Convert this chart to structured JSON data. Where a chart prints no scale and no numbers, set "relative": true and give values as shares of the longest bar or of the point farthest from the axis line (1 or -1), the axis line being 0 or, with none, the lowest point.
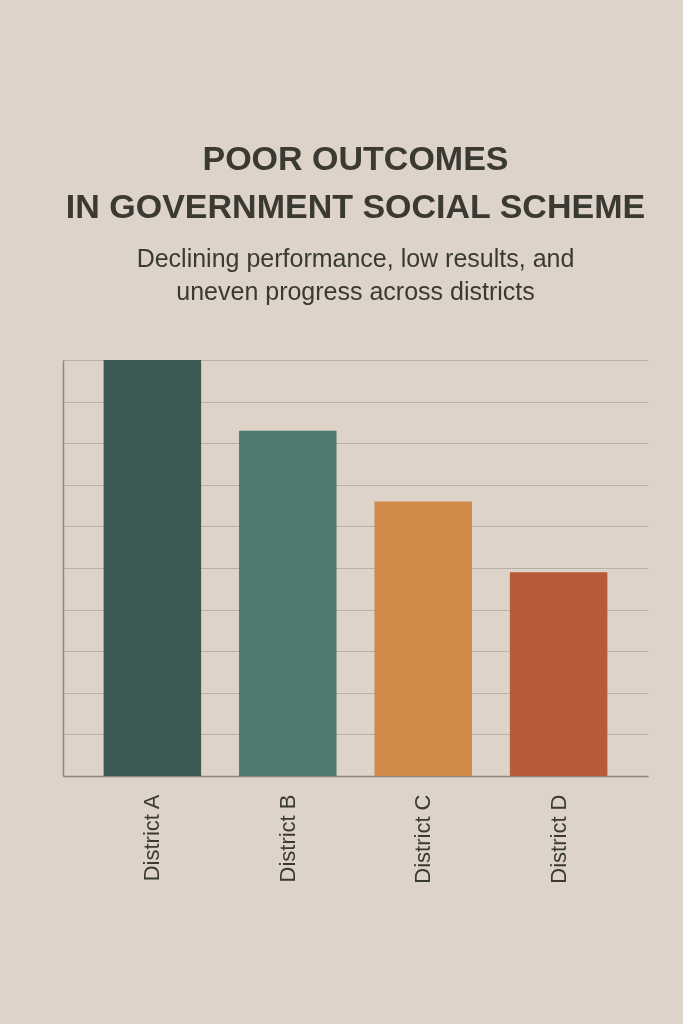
{
  "chart_data": {
    "type": "bar",
    "title": [
      "POOR OUTCOMES",
      "IN GOVERNMENT SOCIAL SCHEME"
    ],
    "subtitle": [
      "Declining performance, low results, and",
      "uneven progress across districts"
    ],
    "categories": [
      "District A",
      "District B",
      "District C",
      "District D"
    ],
    "values": [
      1,
      0.83,
      0.66,
      0.49
    ],
    "colors": [
      "#3d5a55",
      "#4f7b70",
      "#d18a48",
      "#b85a3c"
    ],
    "relative": true,
    "grid": "y",
    "legend": false
  }
}
